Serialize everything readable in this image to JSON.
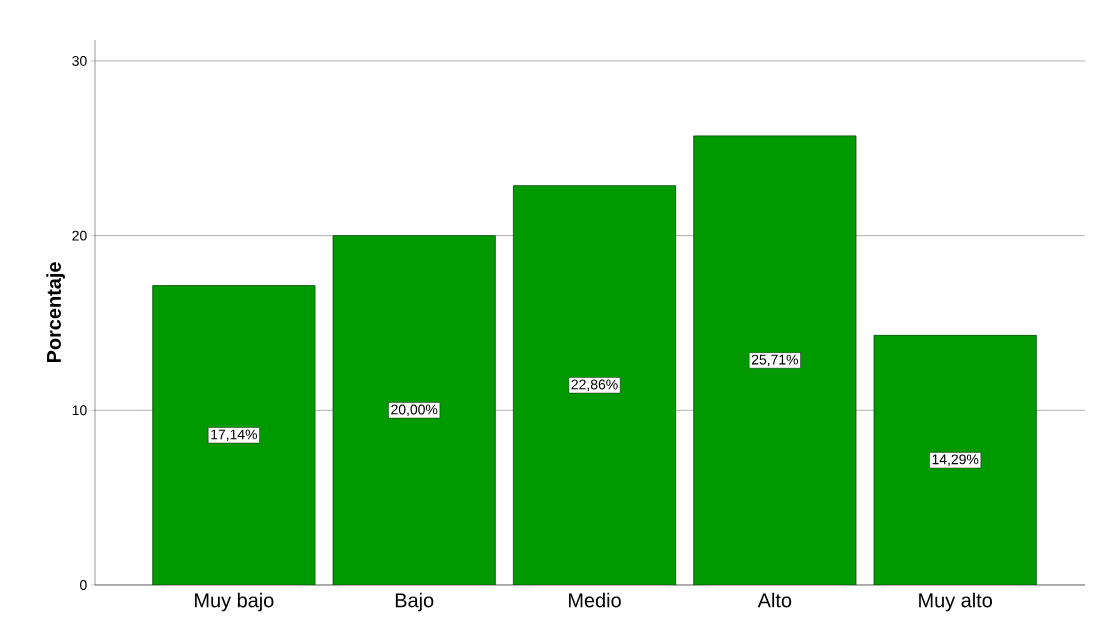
{
  "chart_data": {
    "type": "bar",
    "ylabel": "Porcentaje",
    "categories": [
      "Muy bajo",
      "Bajo",
      "Medio",
      "Alto",
      "Muy alto"
    ],
    "values": [
      17.14,
      20.0,
      22.86,
      25.71,
      14.29
    ],
    "value_labels": [
      "17,14%",
      "20,00%",
      "22,86%",
      "25,71%",
      "14,29%"
    ],
    "color": "#009900",
    "ylim": [
      0,
      31.2
    ],
    "yticks": [
      0,
      10,
      20,
      30
    ],
    "grid": "y"
  }
}
